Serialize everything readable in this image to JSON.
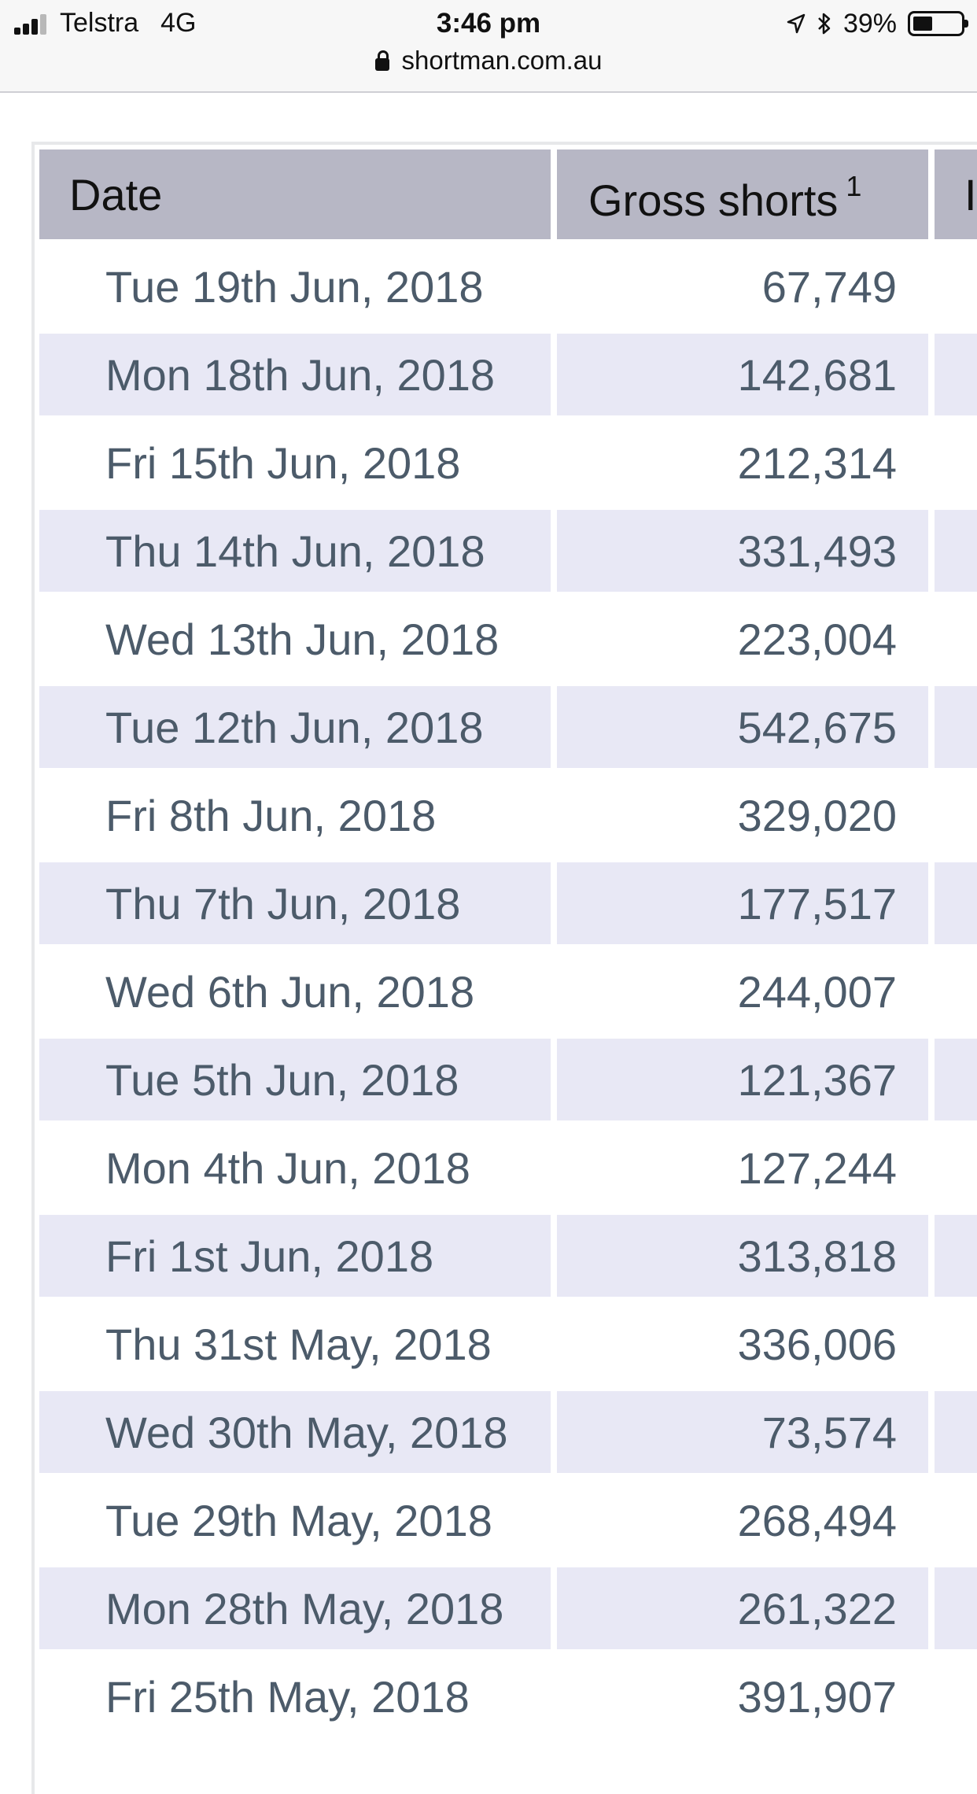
{
  "status_bar": {
    "carrier": "Telstra",
    "network": "4G",
    "time": "3:46 pm",
    "battery_percent": "39%",
    "battery_level": 0.39,
    "icons": [
      "signal-icon",
      "location-arrow-icon",
      "bluetooth-icon",
      "battery-icon"
    ]
  },
  "browser": {
    "url": "shortman.com.au"
  },
  "table": {
    "headers": {
      "date": "Date",
      "gross_shorts": "Gross shorts",
      "gross_shorts_note": "1",
      "next_column_fragment": "I"
    },
    "rows": [
      {
        "date": "Tue 19th Jun, 2018",
        "gross_shorts": "67,749"
      },
      {
        "date": "Mon 18th Jun, 2018",
        "gross_shorts": "142,681"
      },
      {
        "date": "Fri 15th Jun, 2018",
        "gross_shorts": "212,314"
      },
      {
        "date": "Thu 14th Jun, 2018",
        "gross_shorts": "331,493"
      },
      {
        "date": "Wed 13th Jun, 2018",
        "gross_shorts": "223,004"
      },
      {
        "date": "Tue 12th Jun, 2018",
        "gross_shorts": "542,675"
      },
      {
        "date": "Fri 8th Jun, 2018",
        "gross_shorts": "329,020"
      },
      {
        "date": "Thu 7th Jun, 2018",
        "gross_shorts": "177,517"
      },
      {
        "date": "Wed 6th Jun, 2018",
        "gross_shorts": "244,007"
      },
      {
        "date": "Tue 5th Jun, 2018",
        "gross_shorts": "121,367"
      },
      {
        "date": "Mon 4th Jun, 2018",
        "gross_shorts": "127,244"
      },
      {
        "date": "Fri 1st Jun, 2018",
        "gross_shorts": "313,818"
      },
      {
        "date": "Thu 31st May, 2018",
        "gross_shorts": "336,006"
      },
      {
        "date": "Wed 30th May, 2018",
        "gross_shorts": "73,574"
      },
      {
        "date": "Tue 29th May, 2018",
        "gross_shorts": "268,494"
      },
      {
        "date": "Mon 28th May, 2018",
        "gross_shorts": "261,322"
      },
      {
        "date": "Fri 25th May, 2018",
        "gross_shorts": "391,907"
      }
    ]
  },
  "colors": {
    "header_bg": "#b7b7c5",
    "alt_row_bg": "#e8e8f5",
    "cell_text": "#4c5b6a"
  }
}
